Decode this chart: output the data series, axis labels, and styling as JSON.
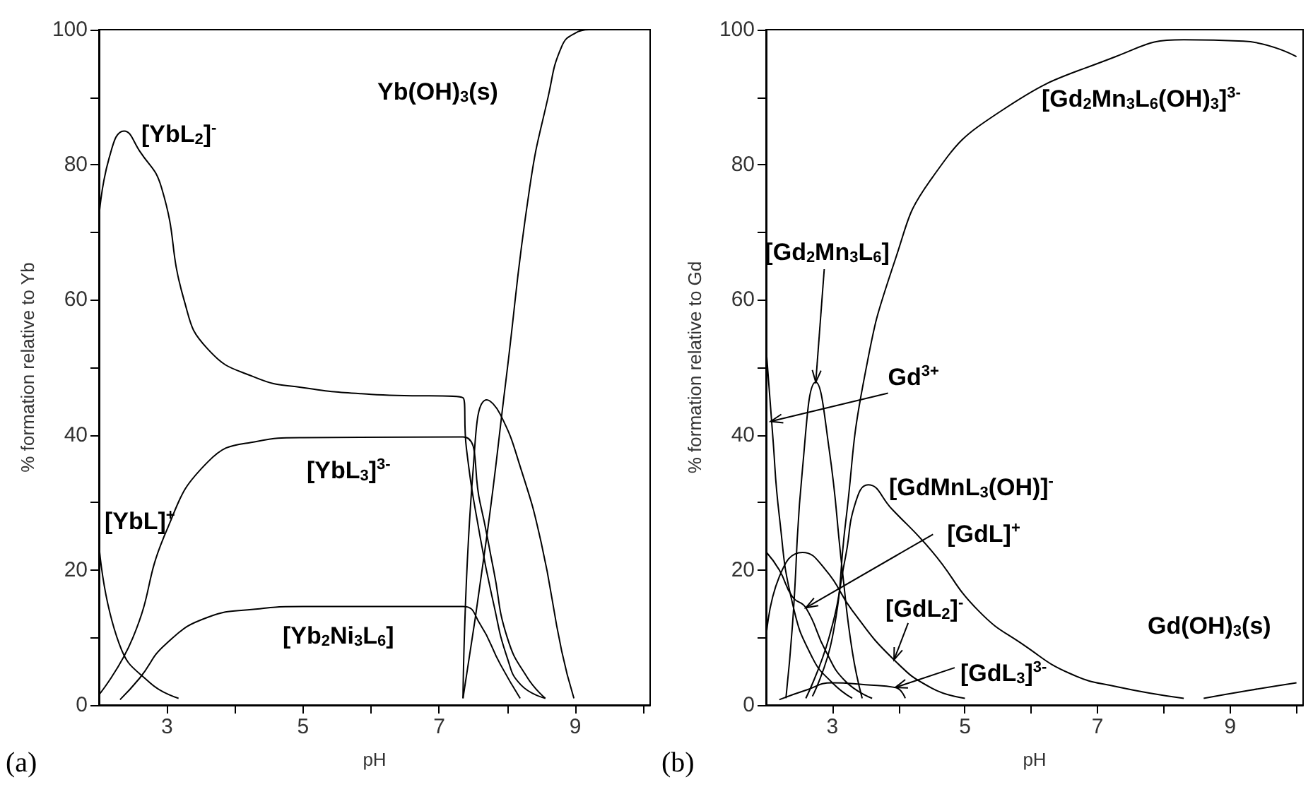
{
  "chart_data": [
    {
      "type": "line",
      "xlabel": "pH",
      "ylabel": "% formation relative to Yb",
      "xlim": [
        2,
        10.1
      ],
      "ylim": [
        0,
        100
      ],
      "xticks": [
        3,
        {
          "value": 4,
          "label": null
        },
        5,
        {
          "value": 6,
          "label": null
        },
        7,
        {
          "value": 8,
          "label": null
        },
        9,
        {
          "value": 10,
          "label": null
        }
      ],
      "yticks": [
        0,
        {
          "value": 10,
          "label": null
        },
        20,
        {
          "value": 30,
          "label": null
        },
        40,
        {
          "value": 50,
          "label": null
        },
        60,
        {
          "value": 70,
          "label": null
        },
        80,
        {
          "value": 90,
          "label": null
        },
        100
      ],
      "marker": "none",
      "line_style": "solid",
      "series": [
        {
          "color": "#000000",
          "x": [
            2,
            2.15,
            2.37,
            2.6,
            2.92,
            3.25,
            3.6,
            4.3,
            5,
            6,
            7.35,
            7.4,
            7.6,
            7.8,
            8.0,
            8.2,
            8.56
          ],
          "values": [
            72,
            81,
            85,
            82,
            76.6,
            60,
            52.7,
            48.5,
            47,
            46,
            45.5,
            38,
            25,
            15,
            7,
            3,
            1
          ]
        },
        {
          "color": "#000000",
          "x": [
            2,
            2.5,
            2.98,
            3.6,
            4.3,
            5,
            7.35,
            7.6,
            7.8,
            8.0,
            8.3,
            8.56
          ],
          "values": [
            1.5,
            10,
            25.5,
            36,
            39,
            39.6,
            39.7,
            30,
            20,
            10,
            4,
            1
          ]
        },
        {
          "color": "#000000",
          "x": [
            2.31,
            2.6,
            2.98,
            3.6,
            4.3,
            5,
            7.35,
            7.6,
            7.9,
            8.19
          ],
          "values": [
            0.8,
            4,
            9,
            13,
            14.2,
            14.6,
            14.6,
            12,
            6,
            1
          ]
        },
        {
          "color": "#000000",
          "x": [
            2,
            2.3,
            2.75,
            3.17
          ],
          "values": [
            24,
            9,
            3.3,
            1
          ]
        },
        {
          "color": "#000000",
          "x": [
            7.35,
            7.5,
            7.7,
            7.9,
            8.2,
            8.5,
            8.8,
            8.98
          ],
          "values": [
            1,
            35,
            45.2,
            43,
            35,
            24,
            8,
            1
          ]
        },
        {
          "color": "#000000",
          "x": [
            7.35,
            7.7,
            7.98,
            8.33,
            8.6,
            8.8,
            9.0,
            9.2
          ],
          "values": [
            1,
            25,
            48,
            76.6,
            90,
            97.5,
            99.5,
            100
          ]
        }
      ],
      "annotations": [
        "Yb(OH)$_{3}$(s)",
        "[YbL$_{2}$]$^{-}$",
        "[YbL]$^{+}$",
        "[YbL$_{3}$]$^{3-}$",
        "[Yb$_{2}$Ni$_{3}$L$_{6}$]",
        "(a)"
      ]
    },
    {
      "type": "line",
      "xlabel": "pH",
      "ylabel": "% formation relative to Gd",
      "xlim": [
        2,
        10.1
      ],
      "ylim": [
        0,
        100
      ],
      "xticks": [
        3,
        {
          "value": 4,
          "label": null
        },
        5,
        {
          "value": 6,
          "label": null
        },
        7,
        {
          "value": 8,
          "label": null
        },
        9,
        {
          "value": 10,
          "label": null
        }
      ],
      "yticks": [
        0,
        {
          "value": 10,
          "label": null
        },
        20,
        {
          "value": 30,
          "label": null
        },
        40,
        {
          "value": 50,
          "label": null
        },
        60,
        {
          "value": 70,
          "label": null
        },
        80,
        {
          "value": 90,
          "label": null
        },
        100
      ],
      "marker": "none",
      "line_style": "solid",
      "series": [
        {
          "color": "#000000",
          "x": [
            2,
            2.1,
            2.2,
            2.4,
            2.7,
            3,
            3.3
          ],
          "values": [
            53,
            40,
            28,
            15,
            7,
            3.3,
            1
          ]
        },
        {
          "color": "#000000",
          "x": [
            2,
            2.2,
            2.4,
            2.6,
            2.9,
            3.2,
            3.6
          ],
          "values": [
            22.7,
            20,
            16,
            14.4,
            8,
            3.5,
            1
          ]
        },
        {
          "color": "#000000",
          "x": [
            2,
            2.2,
            2.55,
            2.9,
            3.3,
            3.93,
            4.5,
            5
          ],
          "values": [
            9.5,
            19,
            22.6,
            20,
            14,
            6.7,
            2.5,
            1
          ]
        },
        {
          "color": "#000000",
          "x": [
            2.2,
            2.6,
            3,
            3.5,
            3.95,
            4.1
          ],
          "values": [
            0.8,
            2.2,
            3.3,
            3,
            2.6,
            1
          ]
        },
        {
          "color": "#000000",
          "x": [
            2.3,
            2.4,
            2.55,
            2.75,
            2.95,
            3.15,
            3.3,
            3.45
          ],
          "values": [
            1,
            12,
            35,
            47.8,
            38,
            20,
            8,
            1
          ]
        },
        {
          "color": "#000000",
          "x": [
            2.6,
            2.95,
            3.2,
            3.35,
            3.54,
            3.9,
            4.5,
            5.2,
            5.9,
            6.6,
            7.3,
            8.3
          ],
          "values": [
            1,
            10,
            22,
            30,
            32.6,
            29,
            22.8,
            14,
            8.8,
            4.6,
            2.7,
            1
          ]
        },
        {
          "color": "#000000",
          "x": [
            2.7,
            3,
            3.2,
            3.47,
            3.95,
            4.5,
            5.55,
            7.27,
            8.3,
            9.2,
            10
          ],
          "values": [
            1.3,
            10,
            27,
            47.8,
            66,
            78,
            88,
            96,
            98.5,
            98.3,
            96
          ]
        },
        {
          "color": "#000000",
          "x": [
            8.6,
            9.3,
            10
          ],
          "values": [
            1,
            2.2,
            3.3
          ]
        }
      ],
      "annotations": [
        "[Gd$_{2}$Mn$_{3}$L$_{6}$(OH)$_{3}$]$^{3-}$",
        {
          "text": "[Gd$_{2}$Mn$_{3}$L$_{6}$]",
          "x": 2.75,
          "y": 47.8
        },
        {
          "text": "Gd$^{3+}$",
          "x": 2.07,
          "y": 42
        },
        "[GdMnL$_{3}$(OH)]$^{-}$",
        {
          "text": "[GdL]$^{+}$",
          "x": 2.6,
          "y": 14.4
        },
        {
          "text": "[GdL$_{2}$]$^{-}$",
          "x": 3.93,
          "y": 6.7
        },
        {
          "text": "[GdL$_{3}$]$^{3-}$",
          "x": 3.95,
          "y": 2.6
        },
        "Gd(OH)$_{3}$(s)",
        "(b)"
      ]
    }
  ]
}
